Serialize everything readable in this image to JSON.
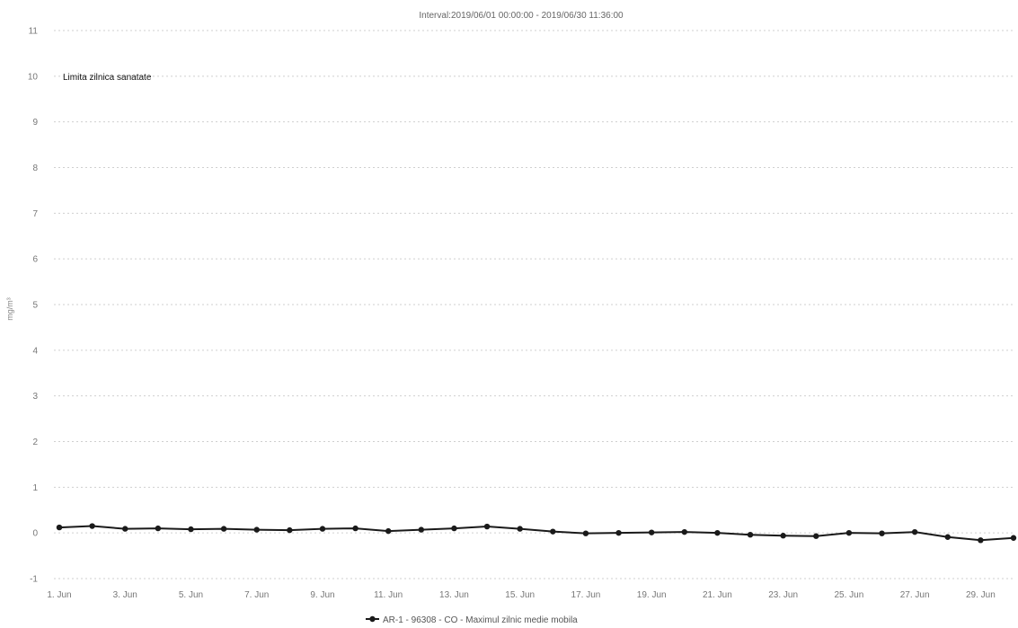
{
  "chart_data": {
    "type": "line",
    "title": "",
    "subtitle": "Interval:2019/06/01 00:00:00 - 2019/06/30 11:36:00",
    "xlabel": "",
    "ylabel": "mg/m³",
    "ylim": [
      -1,
      11
    ],
    "yticks": [
      -1,
      0,
      1,
      2,
      3,
      4,
      5,
      6,
      7,
      8,
      9,
      10,
      11
    ],
    "grid": true,
    "x": [
      "1. Jun",
      "2. Jun",
      "3. Jun",
      "4. Jun",
      "5. Jun",
      "6. Jun",
      "7. Jun",
      "8. Jun",
      "9. Jun",
      "10. Jun",
      "11. Jun",
      "12. Jun",
      "13. Jun",
      "14. Jun",
      "15. Jun",
      "16. Jun",
      "17. Jun",
      "18. Jun",
      "19. Jun",
      "20. Jun",
      "21. Jun",
      "22. Jun",
      "23. Jun",
      "24. Jun",
      "25. Jun",
      "26. Jun",
      "27. Jun",
      "28. Jun",
      "29. Jun",
      "30. Jun"
    ],
    "x_tick_labels": [
      "1. Jun",
      "3. Jun",
      "5. Jun",
      "7. Jun",
      "9. Jun",
      "11. Jun",
      "13. Jun",
      "15. Jun",
      "17. Jun",
      "19. Jun",
      "21. Jun",
      "23. Jun",
      "25. Jun",
      "27. Jun",
      "29. Jun"
    ],
    "series": [
      {
        "name": "AR-1 - 96308 - CO - Maximul zilnic medie mobila",
        "color": "#1a1a1a",
        "values": [
          0.12,
          0.15,
          0.09,
          0.1,
          0.08,
          0.09,
          0.07,
          0.06,
          0.09,
          0.1,
          0.04,
          0.07,
          0.1,
          0.14,
          0.09,
          0.03,
          -0.01,
          0.0,
          0.01,
          0.02,
          0.0,
          -0.04,
          -0.06,
          -0.07,
          0.0,
          -0.01,
          0.02,
          -0.09,
          -0.16,
          -0.11
        ]
      }
    ],
    "annotations": [
      {
        "text": "Limita zilnica sanatate",
        "y": 10
      }
    ],
    "legend_position": "bottom-center"
  }
}
